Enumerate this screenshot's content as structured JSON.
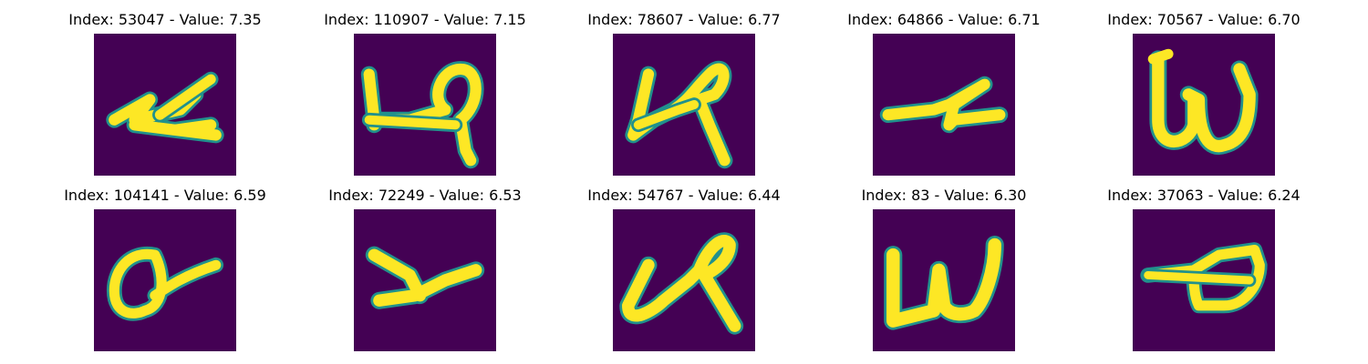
{
  "figure": {
    "background": "#ffffff",
    "panel_color": "#440154",
    "stroke_color": "#fde725",
    "edge_color": "#21918c"
  },
  "panels": [
    {
      "title": "Index: 53047 - Value: 7.35",
      "glyph": "z-shaped stroke"
    },
    {
      "title": "Index: 110907 - Value: 7.15",
      "glyph": "looped stroke with underline"
    },
    {
      "title": "Index: 78607 - Value: 6.77",
      "glyph": "looped cursive stroke"
    },
    {
      "title": "Index: 64866 - Value: 6.71",
      "glyph": "z-shaped stroke"
    },
    {
      "title": "Index: 70567 - Value: 6.70",
      "glyph": "letter w"
    },
    {
      "title": "Index: 104141 - Value: 6.59",
      "glyph": "circle with tail"
    },
    {
      "title": "Index: 72249 - Value: 6.53",
      "glyph": "letter y"
    },
    {
      "title": "Index: 54767 - Value: 6.44",
      "glyph": "looped cursive stroke"
    },
    {
      "title": "Index: 83 - Value: 6.30",
      "glyph": "letter w"
    },
    {
      "title": "Index: 37063 - Value: 6.24",
      "glyph": "loop with crossbar"
    }
  ]
}
